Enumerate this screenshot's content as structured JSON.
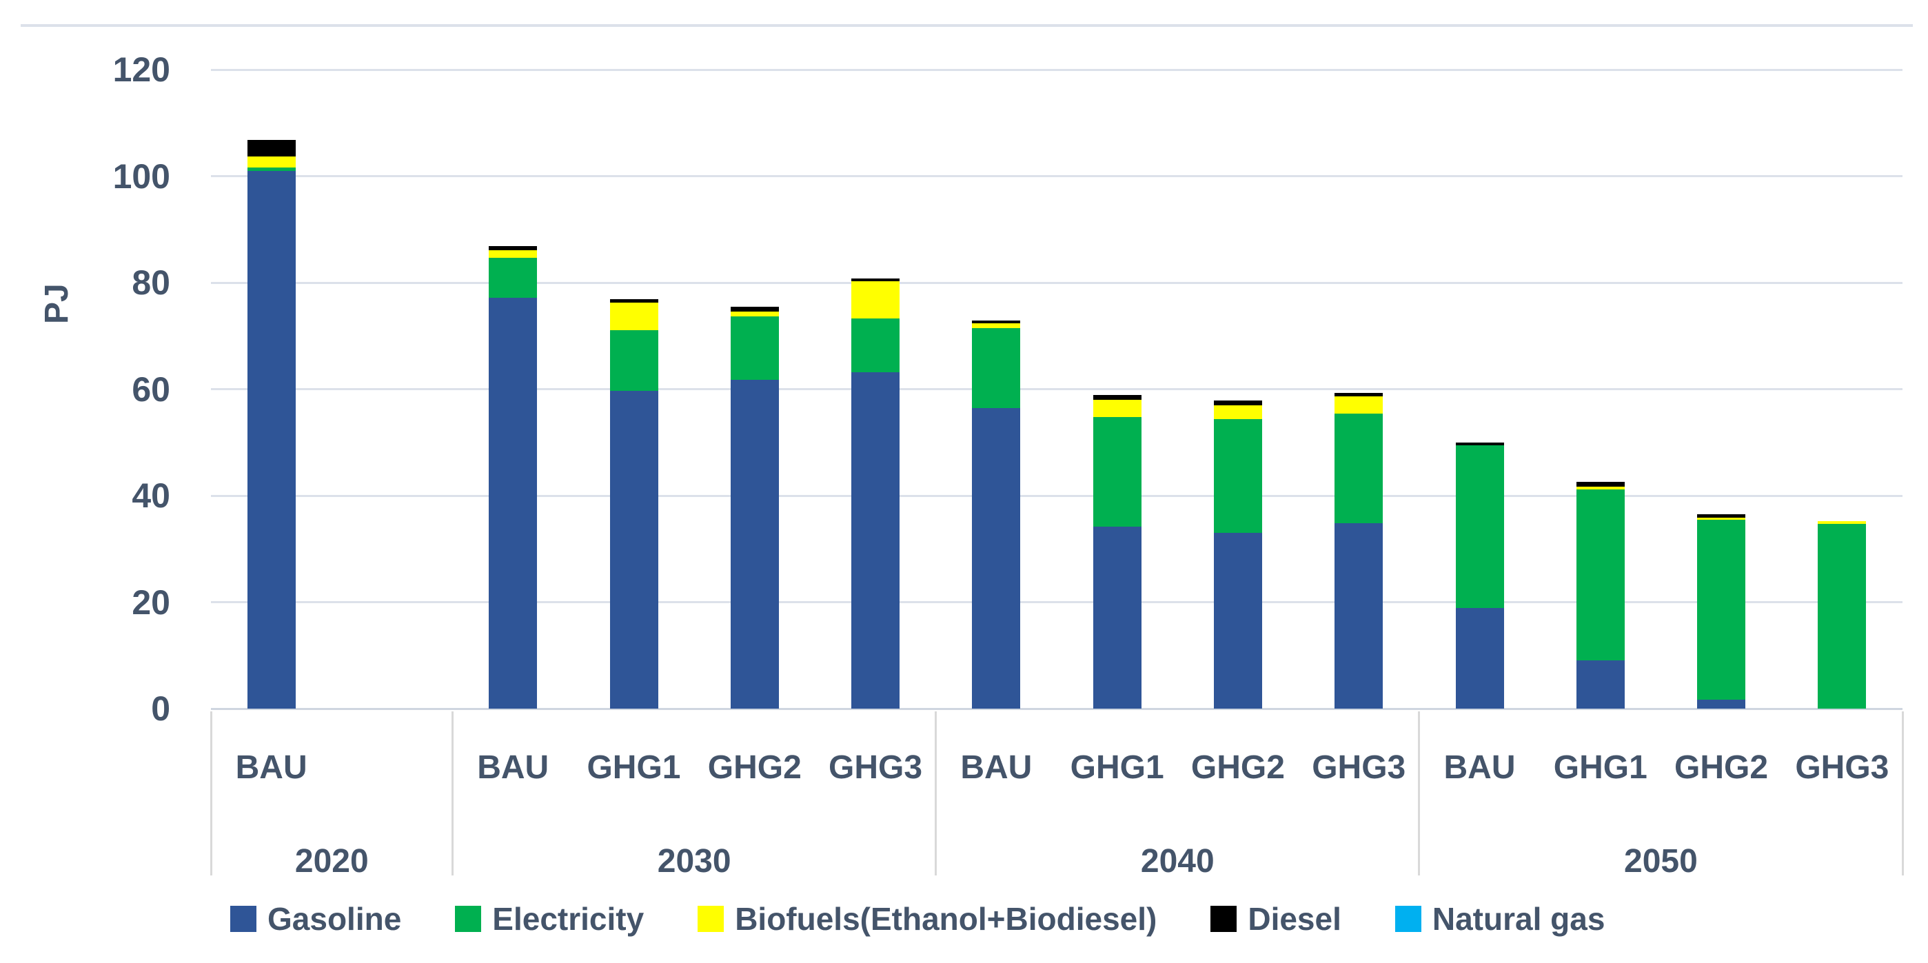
{
  "chart_data": {
    "type": "bar",
    "stacked": true,
    "title": "",
    "ylabel": "PJ",
    "y_ticks": [
      0,
      20,
      40,
      60,
      80,
      100,
      120
    ],
    "ylim": [
      0,
      128.5
    ],
    "grid": true,
    "legend_position": "bottom",
    "text_color": "#44546A",
    "series": [
      {
        "name": "Gasoline",
        "color": "#2F5597"
      },
      {
        "name": "Electricity",
        "color": "#00B050"
      },
      {
        "name": "Biofuels(Ethanol+Biodiesel)",
        "color": "#FFFF00"
      },
      {
        "name": "Diesel",
        "color": "#000000"
      },
      {
        "name": "Natural gas",
        "color": "#00B0F0"
      }
    ],
    "groups": [
      {
        "year": "2020",
        "slot_count": 2,
        "bars": [
          {
            "scenario": "BAU",
            "values": [
              101.0,
              0.6,
              2.1,
              3.1,
              0
            ],
            "total": 106.8
          }
        ]
      },
      {
        "year": "2030",
        "slot_count": 4,
        "bars": [
          {
            "scenario": "BAU",
            "values": [
              77.2,
              7.4,
              1.5,
              0.7,
              0
            ],
            "total": 86.8
          },
          {
            "scenario": "GHG1",
            "values": [
              59.7,
              11.4,
              5.1,
              0.7,
              0
            ],
            "total": 76.9
          },
          {
            "scenario": "GHG2",
            "values": [
              61.7,
              11.9,
              1.0,
              0.9,
              0
            ],
            "total": 75.5
          },
          {
            "scenario": "GHG3",
            "values": [
              63.2,
              10.1,
              7.0,
              0.5,
              0
            ],
            "total": 80.8
          }
        ]
      },
      {
        "year": "2040",
        "slot_count": 4,
        "bars": [
          {
            "scenario": "BAU",
            "values": [
              56.5,
              14.9,
              0.9,
              0.6,
              0
            ],
            "total": 72.9
          },
          {
            "scenario": "GHG1",
            "values": [
              34.2,
              20.6,
              3.2,
              0.9,
              0
            ],
            "total": 58.9
          },
          {
            "scenario": "GHG2",
            "values": [
              33.0,
              21.4,
              2.6,
              0.8,
              0
            ],
            "total": 57.8
          },
          {
            "scenario": "GHG3",
            "values": [
              34.8,
              20.6,
              3.3,
              0.6,
              0
            ],
            "total": 59.3
          }
        ]
      },
      {
        "year": "2050",
        "slot_count": 4,
        "bars": [
          {
            "scenario": "BAU",
            "values": [
              18.9,
              30.6,
              0,
              0.5,
              0
            ],
            "total": 50.0
          },
          {
            "scenario": "GHG1",
            "values": [
              9.1,
              32.1,
              0.5,
              0.9,
              0
            ],
            "total": 42.6
          },
          {
            "scenario": "GHG2",
            "values": [
              1.7,
              33.8,
              0.4,
              0.6,
              0
            ],
            "total": 36.5
          },
          {
            "scenario": "GHG3",
            "values": [
              0,
              34.7,
              0.5,
              0,
              0
            ],
            "total": 35.2
          }
        ]
      }
    ]
  },
  "legend": {
    "items": [
      {
        "label": "Gasoline",
        "color": "#2F5597"
      },
      {
        "label": "Electricity",
        "color": "#00B050"
      },
      {
        "label": "Biofuels(Ethanol+Biodiesel)",
        "color": "#FFFF00"
      },
      {
        "label": "Diesel",
        "color": "#000000"
      },
      {
        "label": "Natural gas",
        "color": "#00B0F0"
      }
    ]
  }
}
